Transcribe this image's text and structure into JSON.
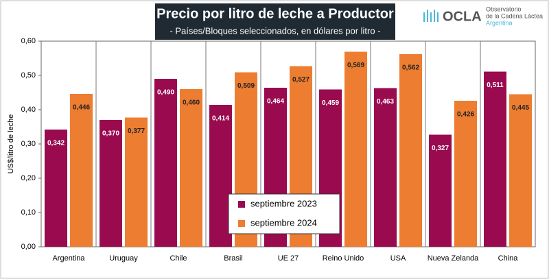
{
  "chart_data": {
    "type": "bar",
    "title": "Precio por litro de leche a Productor",
    "subtitle": "- Países/Bloques seleccionados, en dólares por litro -",
    "annotations": [
      "OCLA",
      "Observatorio",
      "de la Cadena Láctea",
      "Argentina"
    ],
    "y_label": "US$/litro de leche",
    "categories": [
      "Argentina",
      "Uruguay",
      "Chile",
      "Brasil",
      "UE 27",
      "Reino Unido",
      "USA",
      "Nueva Zelanda",
      "China"
    ],
    "series": [
      {
        "name": "septiembre 2023",
        "color": "#990a4f",
        "values": [
          0.342,
          0.37,
          0.49,
          0.414,
          0.464,
          0.459,
          0.463,
          0.327,
          0.511
        ],
        "value_labels": [
          "0,342",
          "0,370",
          "0,490",
          "0,414",
          "0,464",
          "0,459",
          "0,463",
          "0,327",
          "0,511"
        ]
      },
      {
        "name": "septiembre 2024",
        "color": "#ed7d31",
        "values": [
          0.446,
          0.377,
          0.46,
          0.509,
          0.527,
          0.569,
          0.562,
          0.426,
          0.445
        ],
        "value_labels": [
          "0,446",
          "0,377",
          "0,460",
          "0,509",
          "0,527",
          "0,569",
          "0,562",
          "0,426",
          "0,445"
        ]
      }
    ],
    "ylim": [
      0,
      0.6
    ],
    "yticks": [
      {
        "value": 0,
        "label": "0,00"
      },
      {
        "value": 0.1,
        "label": "0,10"
      },
      {
        "value": 0.2,
        "label": "0,20"
      },
      {
        "value": 0.3,
        "label": "0,30"
      },
      {
        "value": 0.4,
        "label": "0,40"
      },
      {
        "value": 0.5,
        "label": "0,50"
      },
      {
        "value": 0.6,
        "label": "0,60"
      }
    ],
    "legend": "lower center"
  }
}
